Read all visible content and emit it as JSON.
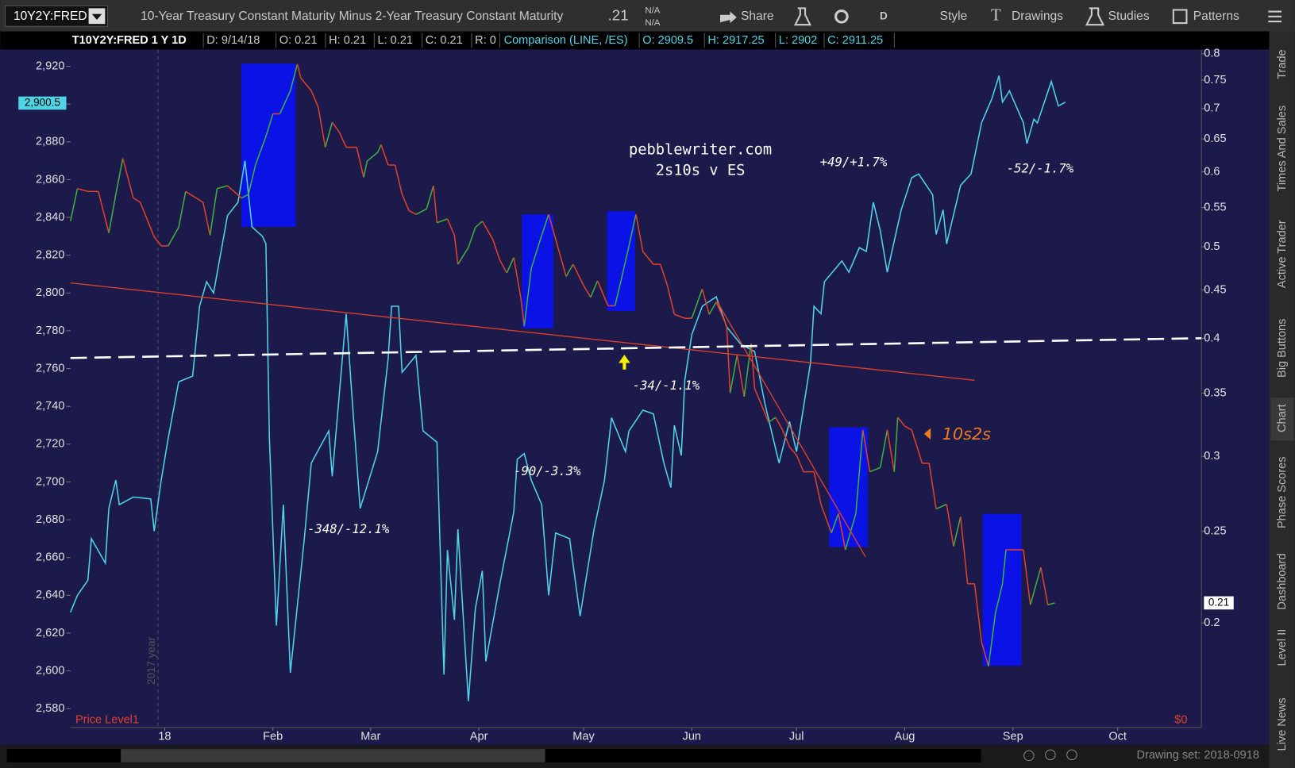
{
  "toolbar": {
    "symbol": "10Y2Y:FRED",
    "description": "10-Year Treasury Constant Maturity Minus 2-Year Treasury Constant Maturity",
    "last": ".21",
    "bid": "N/A",
    "ask": "N/A",
    "buttons": [
      "Share",
      "D",
      "Style",
      "Drawings",
      "Studies",
      "Patterns"
    ]
  },
  "info_bar": {
    "study": "T10Y2Y:FRED 1 Y 1D",
    "fields": [
      "D: 9/14/18",
      "O: 0.21",
      "H: 0.21",
      "L: 0.21",
      "C: 0.21",
      "R: 0"
    ],
    "comparison": "Comparison (LINE, /ES)",
    "comparison_fields": [
      "O: 2909.5",
      "H: 2917.25",
      "L: 2902",
      "C: 2911.25"
    ]
  },
  "chart_data": {
    "type": "line",
    "xlim": [
      -27,
      297
    ],
    "xticks": [
      {
        "value": 0,
        "label": "18"
      },
      {
        "value": 31,
        "label": "Feb"
      },
      {
        "value": 59,
        "label": "Mar"
      },
      {
        "value": 90,
        "label": "Apr"
      },
      {
        "value": 120,
        "label": "May"
      },
      {
        "value": 151,
        "label": "Jun"
      },
      {
        "value": 181,
        "label": "Jul"
      },
      {
        "value": 212,
        "label": "Aug"
      },
      {
        "value": 243,
        "label": "Sep"
      },
      {
        "value": 273,
        "label": "Oct"
      }
    ],
    "ylim": [
      2570,
      2928
    ],
    "yticks": [
      {
        "value": 2580,
        "label": "2,580"
      },
      {
        "value": 2600,
        "label": "2,600"
      },
      {
        "value": 2620,
        "label": "2,620"
      },
      {
        "value": 2640,
        "label": "2,640"
      },
      {
        "value": 2660,
        "label": "2,660"
      },
      {
        "value": 2680,
        "label": "2,680"
      },
      {
        "value": 2700,
        "label": "2,700"
      },
      {
        "value": 2720,
        "label": "2,720"
      },
      {
        "value": 2740,
        "label": "2,740"
      },
      {
        "value": 2760,
        "label": "2,760"
      },
      {
        "value": 2780,
        "label": "2,780"
      },
      {
        "value": 2800,
        "label": "2,800"
      },
      {
        "value": 2820,
        "label": "2,820"
      },
      {
        "value": 2840,
        "label": "2,840"
      },
      {
        "value": 2860,
        "label": "2,860"
      },
      {
        "value": 2880,
        "label": "2,880"
      },
      {
        "value": 2900,
        "label": "2,900"
      },
      {
        "value": 2920,
        "label": "2,920"
      }
    ],
    "y2lim": [
      0.155,
      0.805
    ],
    "y2log": true,
    "y2ticks": [
      0.2,
      0.25,
      0.3,
      0.35,
      0.4,
      0.45,
      0.5,
      0.55,
      0.6,
      0.65,
      0.7,
      0.75,
      0.8
    ],
    "grid": false,
    "series": [
      {
        "color": "#4ed4e4",
        "x": [
          -27,
          -25,
          -22,
          -21,
          -17,
          -16,
          -14,
          -13,
          -9,
          -4,
          -3,
          -1,
          1,
          4,
          8,
          10,
          12,
          14,
          18,
          21,
          23,
          25,
          28,
          29,
          30,
          32,
          34,
          36,
          40,
          42,
          47,
          48,
          52,
          54,
          56,
          61,
          64,
          65,
          67,
          68,
          72,
          74,
          78,
          80,
          81,
          83,
          84,
          87,
          89,
          91,
          92,
          96,
          100,
          101,
          103,
          105,
          108,
          110,
          112,
          116,
          119,
          123,
          126,
          128,
          132,
          133,
          137,
          140,
          143,
          145,
          146,
          148,
          149,
          151,
          154,
          158,
          161,
          165,
          169,
          172,
          176,
          179,
          181,
          185,
          186,
          188,
          189,
          194,
          196,
          199,
          201,
          203,
          205,
          207,
          211,
          214,
          216,
          220,
          221,
          223,
          224,
          228,
          231,
          234,
          237,
          239,
          240,
          242,
          246,
          247,
          249,
          250,
          254,
          256,
          258
        ],
        "values": [
          2631,
          2640,
          2648,
          2670,
          2657,
          2686,
          2701,
          2688,
          2692,
          2691,
          2674,
          2701,
          2723,
          2753,
          2756,
          2793,
          2806,
          2800,
          2841,
          2848,
          2870,
          2835,
          2830,
          2826,
          2723,
          2624,
          2688,
          2599,
          2670,
          2710,
          2727,
          2703,
          2789,
          2736,
          2686,
          2716,
          2765,
          2793,
          2793,
          2758,
          2767,
          2727,
          2721,
          2598,
          2664,
          2627,
          2675,
          2584,
          2633,
          2653,
          2605,
          2646,
          2684,
          2712,
          2715,
          2701,
          2688,
          2640,
          2673,
          2670,
          2629,
          2675,
          2701,
          2734,
          2716,
          2727,
          2738,
          2736,
          2710,
          2697,
          2730,
          2714,
          2754,
          2778,
          2793,
          2798,
          2782,
          2773,
          2769,
          2741,
          2710,
          2732,
          2716,
          2763,
          2793,
          2789,
          2806,
          2817,
          2811,
          2824,
          2822,
          2848,
          2833,
          2811,
          2844,
          2861,
          2863,
          2852,
          2831,
          2844,
          2826,
          2857,
          2863,
          2890,
          2903,
          2915,
          2901,
          2907,
          2890,
          2879,
          2892,
          2890,
          2912,
          2899,
          2901
        ]
      },
      {
        "axis": "y2",
        "up_color": "#3fae3f",
        "down_color": "#e0402a",
        "x": [
          -27,
          -25,
          -22,
          -21,
          -19,
          -16,
          -14,
          -12,
          -9,
          -7,
          -3,
          -1,
          1,
          4,
          6,
          9,
          11,
          13,
          15,
          18,
          22,
          24,
          26,
          29,
          31,
          33,
          36,
          38,
          39,
          42,
          44,
          46,
          48,
          50,
          52,
          55,
          57,
          58,
          61,
          62,
          64,
          66,
          68,
          70,
          72,
          75,
          77,
          78,
          81,
          83,
          84,
          87,
          89,
          91,
          94,
          96,
          98,
          100,
          102,
          103,
          105,
          108,
          110,
          113,
          115,
          117,
          120,
          122,
          124,
          127,
          129,
          131,
          133,
          135,
          137,
          140,
          142,
          144,
          146,
          149,
          151,
          154,
          156,
          158,
          161,
          162,
          164,
          166,
          168,
          169,
          171,
          173,
          175,
          177,
          179,
          181,
          183,
          186,
          188,
          191,
          193,
          195,
          198,
          200,
          202,
          205,
          207,
          209,
          210,
          212,
          214,
          217,
          219,
          221,
          224,
          226,
          228,
          230,
          232,
          234,
          236,
          238,
          240,
          241,
          244,
          246,
          248,
          251,
          253,
          255
        ],
        "values": [
          0.532,
          0.576,
          0.572,
          0.572,
          0.572,
          0.517,
          0.568,
          0.62,
          0.563,
          0.557,
          0.512,
          0.501,
          0.501,
          0.524,
          0.572,
          0.563,
          0.557,
          0.514,
          0.576,
          0.58,
          0.563,
          0.568,
          0.61,
          0.654,
          0.691,
          0.691,
          0.731,
          0.78,
          0.754,
          0.731,
          0.702,
          0.637,
          0.677,
          0.661,
          0.637,
          0.637,
          0.592,
          0.616,
          0.629,
          0.641,
          0.61,
          0.61,
          0.568,
          0.546,
          0.541,
          0.548,
          0.58,
          0.53,
          0.535,
          0.514,
          0.479,
          0.499,
          0.524,
          0.532,
          0.509,
          0.484,
          0.469,
          0.487,
          0.442,
          0.412,
          0.474,
          0.514,
          0.541,
          0.494,
          0.465,
          0.479,
          0.455,
          0.442,
          0.46,
          0.433,
          0.433,
          0.465,
          0.501,
          0.541,
          0.494,
          0.479,
          0.479,
          0.455,
          0.424,
          0.42,
          0.42,
          0.451,
          0.424,
          0.437,
          0.412,
          0.35,
          0.384,
          0.347,
          0.395,
          0.354,
          0.34,
          0.326,
          0.33,
          0.32,
          0.307,
          0.301,
          0.289,
          0.289,
          0.267,
          0.249,
          0.261,
          0.239,
          0.261,
          0.32,
          0.289,
          0.292,
          0.32,
          0.289,
          0.33,
          0.323,
          0.32,
          0.295,
          0.295,
          0.264,
          0.267,
          0.241,
          0.259,
          0.22,
          0.22,
          0.191,
          0.18,
          0.205,
          0.22,
          0.239,
          0.239,
          0.239,
          0.209,
          0.229,
          0.209,
          0.21
        ]
      }
    ],
    "price_bubbles": [
      {
        "value": 2900.5,
        "label": "2,900.5"
      },
      {
        "value": 0.21,
        "label": "0.21",
        "axis": "y2"
      }
    ]
  },
  "annotations": [
    "pebblewriter.com",
    "2s10s v ES",
    "+49/+1.7%",
    "-52/-1.7%",
    "-34/-1.1%",
    "-90/-3.3%",
    "-348/-12.1%",
    "10s2s",
    "Price Level1",
    "$0",
    "2017 year"
  ],
  "side_tabs": [
    "Trade",
    "Times And Sales",
    "Active Trader",
    "Big Buttons",
    "Chart",
    "Phase Scores",
    "Dashboard",
    "Level II",
    "Live News"
  ],
  "status": "Drawing set: 2018-0918"
}
